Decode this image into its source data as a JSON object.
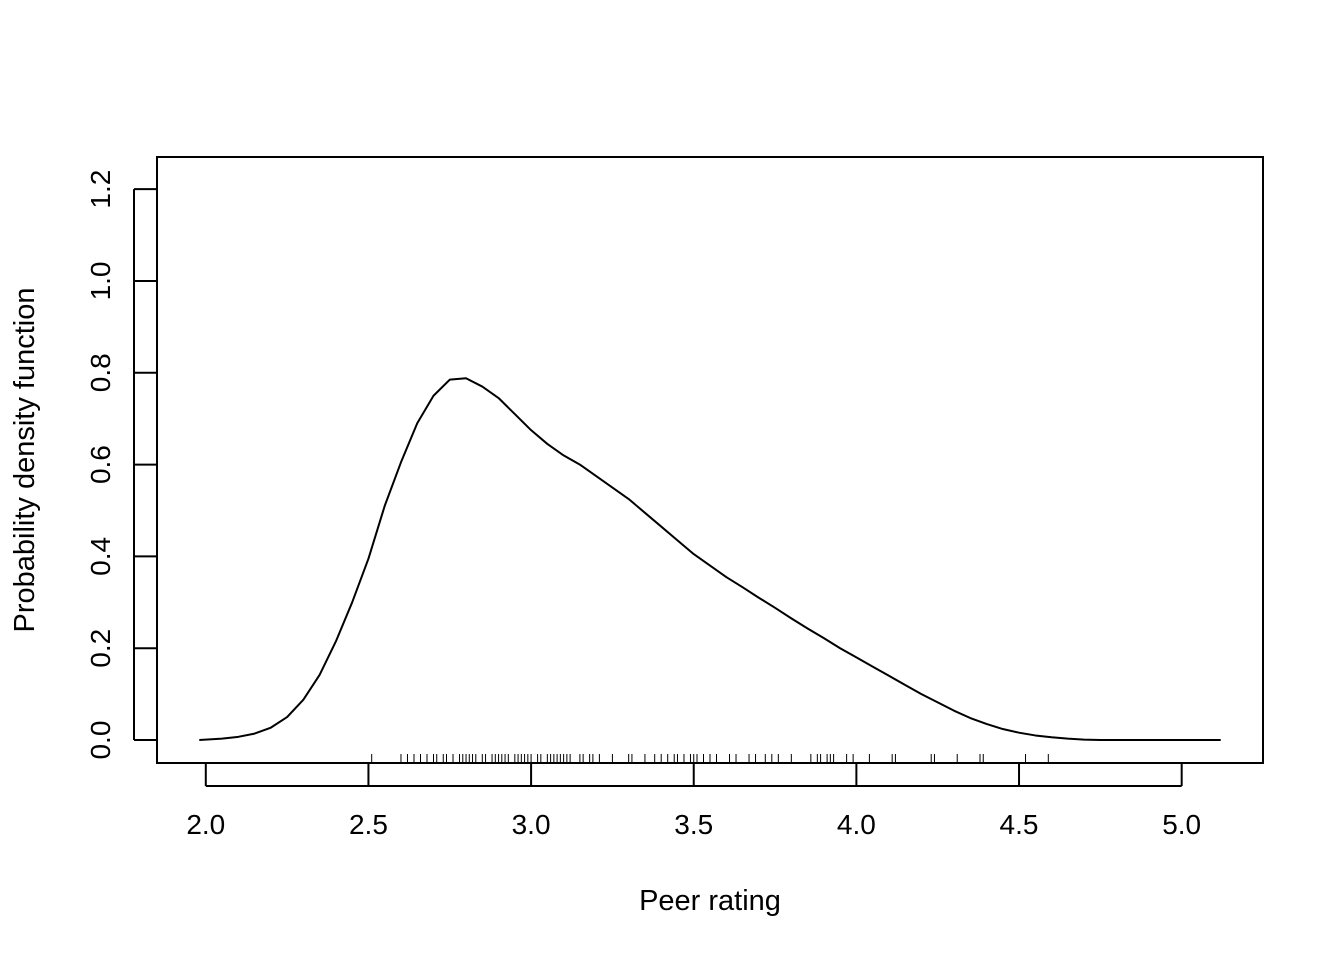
{
  "chart_data": {
    "type": "line",
    "title": "",
    "xlabel": "Peer rating",
    "ylabel": "Probability density function",
    "xlim": [
      1.85,
      5.25
    ],
    "ylim": [
      -0.05,
      1.27
    ],
    "x_ticks": [
      "2.0",
      "2.5",
      "3.0",
      "3.5",
      "4.0",
      "4.5",
      "5.0"
    ],
    "y_ticks": [
      "0.0",
      "0.2",
      "0.4",
      "0.6",
      "0.8",
      "1.0",
      "1.2"
    ],
    "grid": false,
    "legend": "none",
    "series": [
      {
        "color": "#000000",
        "x": [
          1.98,
          2.05,
          2.1,
          2.15,
          2.2,
          2.25,
          2.3,
          2.35,
          2.4,
          2.45,
          2.5,
          2.55,
          2.6,
          2.65,
          2.7,
          2.75,
          2.8,
          2.85,
          2.9,
          2.95,
          3.0,
          3.05,
          3.1,
          3.15,
          3.2,
          3.25,
          3.3,
          3.35,
          3.4,
          3.45,
          3.5,
          3.55,
          3.6,
          3.65,
          3.7,
          3.75,
          3.8,
          3.85,
          3.9,
          3.95,
          4.0,
          4.05,
          4.1,
          4.15,
          4.2,
          4.25,
          4.3,
          4.35,
          4.4,
          4.45,
          4.5,
          4.55,
          4.6,
          4.65,
          4.7,
          4.75,
          4.8,
          4.85,
          4.9,
          4.95,
          5.0,
          5.05,
          5.12
        ],
        "y": [
          0.0,
          0.003,
          0.007,
          0.014,
          0.027,
          0.05,
          0.088,
          0.142,
          0.215,
          0.3,
          0.395,
          0.51,
          0.605,
          0.69,
          0.75,
          0.785,
          0.788,
          0.77,
          0.745,
          0.71,
          0.675,
          0.645,
          0.62,
          0.6,
          0.575,
          0.55,
          0.525,
          0.495,
          0.465,
          0.435,
          0.405,
          0.38,
          0.355,
          0.333,
          0.31,
          0.288,
          0.265,
          0.243,
          0.222,
          0.2,
          0.18,
          0.16,
          0.14,
          0.12,
          0.1,
          0.082,
          0.064,
          0.048,
          0.035,
          0.024,
          0.016,
          0.01,
          0.006,
          0.003,
          0.001,
          0.0,
          0.0,
          0.0,
          0.0,
          0.0,
          0.0,
          0.0,
          0.0
        ]
      }
    ],
    "rug": [
      2.51,
      2.6,
      2.62,
      2.64,
      2.66,
      2.68,
      2.7,
      2.71,
      2.73,
      2.74,
      2.76,
      2.78,
      2.79,
      2.8,
      2.81,
      2.82,
      2.83,
      2.85,
      2.86,
      2.88,
      2.89,
      2.9,
      2.91,
      2.92,
      2.93,
      2.95,
      2.96,
      2.97,
      2.98,
      2.99,
      3.0,
      3.02,
      3.03,
      3.05,
      3.06,
      3.07,
      3.08,
      3.09,
      3.1,
      3.11,
      3.12,
      3.15,
      3.16,
      3.18,
      3.19,
      3.21,
      3.25,
      3.3,
      3.31,
      3.35,
      3.38,
      3.4,
      3.42,
      3.44,
      3.45,
      3.47,
      3.49,
      3.5,
      3.51,
      3.53,
      3.55,
      3.57,
      3.61,
      3.63,
      3.67,
      3.69,
      3.72,
      3.74,
      3.76,
      3.8,
      3.86,
      3.88,
      3.89,
      3.91,
      3.92,
      3.93,
      3.97,
      3.99,
      4.04,
      4.11,
      4.12,
      4.23,
      4.24,
      4.31,
      4.38,
      4.39,
      4.52,
      4.59
    ]
  }
}
